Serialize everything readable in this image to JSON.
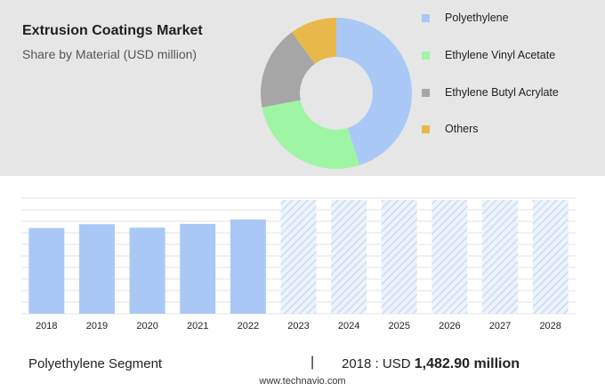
{
  "header": {
    "title": "Extrusion Coatings Market",
    "subtitle": "Share by Material (USD million)"
  },
  "legend": [
    {
      "label": "Polyethylene",
      "color": "#a9c8f5"
    },
    {
      "label": "Ethylene Vinyl Acetate",
      "color": "#9ef5a4"
    },
    {
      "label": "Ethylene Butyl Acrylate",
      "color": "#a6a6a6"
    },
    {
      "label": "Others",
      "color": "#e8b94a"
    }
  ],
  "chart_data": [
    {
      "type": "pie",
      "title": "Share by Material (USD million)",
      "categories": [
        "Polyethylene",
        "Ethylene Vinyl Acetate",
        "Ethylene Butyl Acrylate",
        "Others"
      ],
      "values": [
        45,
        27,
        18,
        10
      ],
      "colors": [
        "#a9c8f5",
        "#9ef5a4",
        "#a6a6a6",
        "#e8b94a"
      ],
      "donut": true
    },
    {
      "type": "bar",
      "categories": [
        "2018",
        "2019",
        "2020",
        "2021",
        "2022",
        "2023",
        "2024",
        "2025",
        "2026",
        "2027",
        "2028"
      ],
      "values": [
        1482.9,
        1550,
        1490,
        1555,
        1630,
        null,
        null,
        null,
        null,
        null,
        null
      ],
      "forecast": [
        false,
        false,
        false,
        false,
        false,
        true,
        true,
        true,
        true,
        true,
        true
      ],
      "ylim": [
        0,
        2000
      ],
      "grid": true,
      "bar_color": "#a9c8f5",
      "forecast_color": "#c9dcf5"
    }
  ],
  "footer": {
    "segment_label": "Polyethylene Segment",
    "separator": "|",
    "value_prefix": "2018 : USD ",
    "value_bold": "1,482.90 million"
  },
  "source": "www.technavio.com"
}
